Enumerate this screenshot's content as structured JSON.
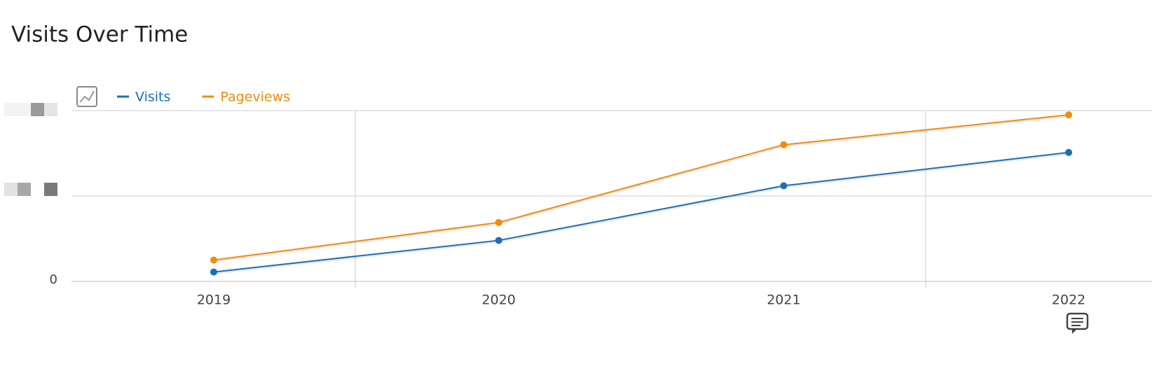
{
  "chart_data": {
    "type": "line",
    "title": "Visits Over Time",
    "categories": [
      "2019",
      "2020",
      "2021",
      "2022"
    ],
    "series": [
      {
        "name": "Visits",
        "color": "#1b6fb6",
        "values": [
          0.11,
          0.48,
          1.12,
          1.51
        ]
      },
      {
        "name": "Pageviews",
        "color": "#f38b0c",
        "values": [
          0.25,
          0.69,
          1.6,
          1.95
        ]
      }
    ],
    "ylim": [
      0,
      2
    ],
    "yticks": [
      0
    ],
    "grid": true
  }
}
